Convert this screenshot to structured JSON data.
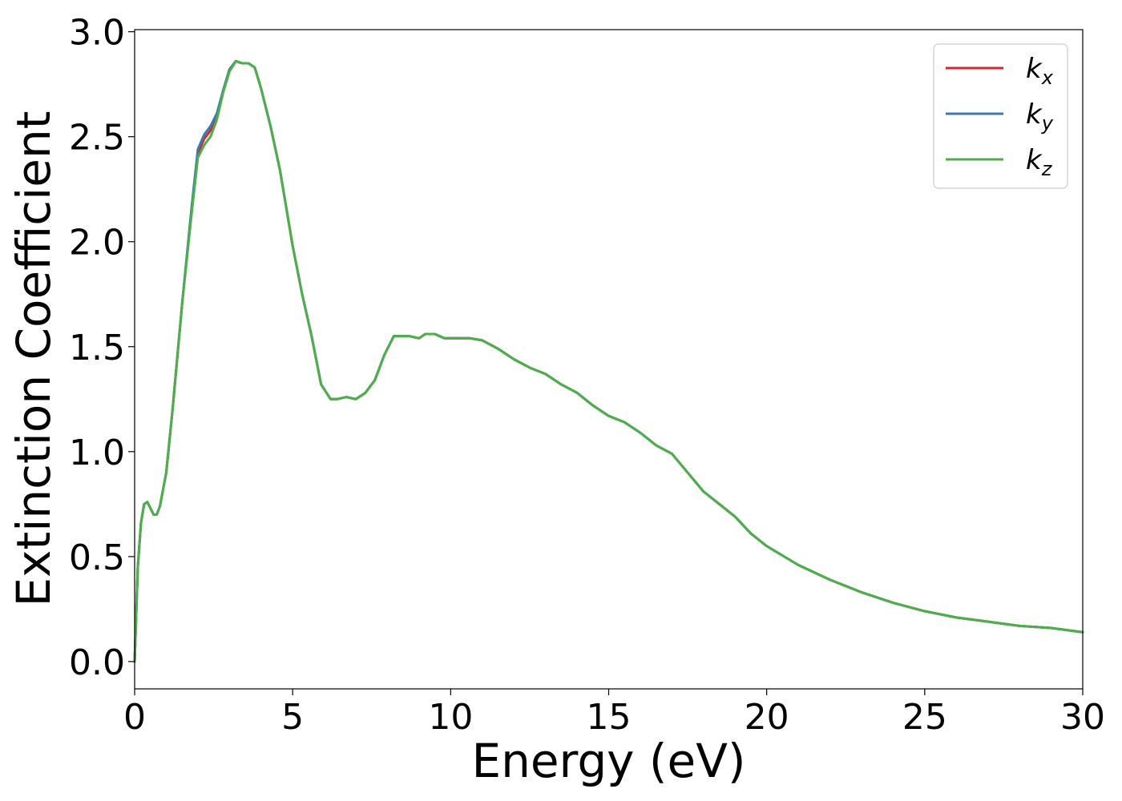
{
  "chart_data": {
    "type": "line",
    "title": "",
    "xlabel": "Energy (eV)",
    "ylabel": "Extinction Coefficient",
    "xlim": [
      0,
      30
    ],
    "ylim": [
      -0.13,
      3.01
    ],
    "xticks": [
      0,
      5,
      10,
      15,
      20,
      25,
      30
    ],
    "xtick_labels": [
      "0",
      "5",
      "10",
      "15",
      "20",
      "25",
      "30"
    ],
    "yticks": [
      0.0,
      0.5,
      1.0,
      1.5,
      2.0,
      2.5,
      3.0
    ],
    "ytick_labels": [
      "0.0",
      "0.5",
      "1.0",
      "1.5",
      "2.0",
      "2.5",
      "3.0"
    ],
    "grid": false,
    "legend_position": "top-right",
    "x": [
      0,
      0.1,
      0.2,
      0.3,
      0.4,
      0.5,
      0.6,
      0.7,
      0.8,
      1.0,
      1.2,
      1.5,
      1.8,
      2.0,
      2.2,
      2.4,
      2.6,
      2.8,
      3.0,
      3.2,
      3.4,
      3.6,
      3.8,
      4.0,
      4.3,
      4.6,
      5.0,
      5.3,
      5.6,
      5.9,
      6.2,
      6.4,
      6.7,
      7.0,
      7.3,
      7.6,
      7.9,
      8.2,
      8.4,
      8.7,
      9.0,
      9.2,
      9.5,
      9.8,
      10.2,
      10.6,
      11.0,
      11.5,
      12.0,
      12.5,
      13.0,
      13.5,
      14.0,
      14.5,
      15.0,
      15.5,
      16.0,
      16.5,
      17.0,
      17.5,
      18.0,
      18.5,
      19.0,
      19.5,
      20.0,
      21.0,
      22.0,
      23.0,
      24.0,
      25.0,
      26.0,
      27.0,
      28.0,
      29.0,
      30.0
    ],
    "series": [
      {
        "name": "k_x",
        "label_base": "k",
        "label_sub": "x",
        "color": "#d62728",
        "values": [
          0.0,
          0.45,
          0.66,
          0.75,
          0.76,
          0.73,
          0.7,
          0.7,
          0.74,
          0.9,
          1.2,
          1.7,
          2.15,
          2.42,
          2.49,
          2.53,
          2.6,
          2.72,
          2.82,
          2.86,
          2.85,
          2.85,
          2.83,
          2.73,
          2.55,
          2.34,
          1.98,
          1.75,
          1.55,
          1.32,
          1.25,
          1.25,
          1.26,
          1.25,
          1.28,
          1.34,
          1.46,
          1.55,
          1.55,
          1.55,
          1.54,
          1.56,
          1.56,
          1.54,
          1.54,
          1.54,
          1.53,
          1.49,
          1.44,
          1.4,
          1.37,
          1.32,
          1.28,
          1.22,
          1.17,
          1.14,
          1.09,
          1.03,
          0.99,
          0.9,
          0.81,
          0.75,
          0.69,
          0.61,
          0.55,
          0.46,
          0.39,
          0.33,
          0.28,
          0.24,
          0.21,
          0.19,
          0.17,
          0.16,
          0.14
        ]
      },
      {
        "name": "k_y",
        "label_base": "k",
        "label_sub": "y",
        "color": "#3a7bb5",
        "values": [
          0.0,
          0.45,
          0.66,
          0.75,
          0.76,
          0.73,
          0.7,
          0.7,
          0.74,
          0.9,
          1.2,
          1.7,
          2.16,
          2.44,
          2.51,
          2.55,
          2.61,
          2.72,
          2.82,
          2.86,
          2.85,
          2.85,
          2.83,
          2.73,
          2.55,
          2.34,
          1.98,
          1.75,
          1.55,
          1.32,
          1.25,
          1.25,
          1.26,
          1.25,
          1.28,
          1.34,
          1.46,
          1.55,
          1.55,
          1.55,
          1.54,
          1.56,
          1.56,
          1.54,
          1.54,
          1.54,
          1.53,
          1.49,
          1.44,
          1.4,
          1.37,
          1.32,
          1.28,
          1.22,
          1.17,
          1.14,
          1.09,
          1.03,
          0.99,
          0.9,
          0.81,
          0.75,
          0.69,
          0.61,
          0.55,
          0.46,
          0.39,
          0.33,
          0.28,
          0.24,
          0.21,
          0.19,
          0.17,
          0.16,
          0.14
        ]
      },
      {
        "name": "k_z",
        "label_base": "k",
        "label_sub": "z",
        "color": "#4daf4a",
        "values": [
          0.0,
          0.45,
          0.66,
          0.75,
          0.76,
          0.73,
          0.7,
          0.7,
          0.74,
          0.9,
          1.2,
          1.7,
          2.13,
          2.4,
          2.46,
          2.5,
          2.58,
          2.71,
          2.81,
          2.86,
          2.85,
          2.85,
          2.83,
          2.73,
          2.55,
          2.34,
          1.98,
          1.75,
          1.55,
          1.32,
          1.25,
          1.25,
          1.26,
          1.25,
          1.28,
          1.34,
          1.46,
          1.55,
          1.55,
          1.55,
          1.54,
          1.56,
          1.56,
          1.54,
          1.54,
          1.54,
          1.53,
          1.49,
          1.44,
          1.4,
          1.37,
          1.32,
          1.28,
          1.22,
          1.17,
          1.14,
          1.09,
          1.03,
          0.99,
          0.9,
          0.81,
          0.75,
          0.69,
          0.61,
          0.55,
          0.46,
          0.39,
          0.33,
          0.28,
          0.24,
          0.21,
          0.19,
          0.17,
          0.16,
          0.14
        ]
      }
    ]
  }
}
